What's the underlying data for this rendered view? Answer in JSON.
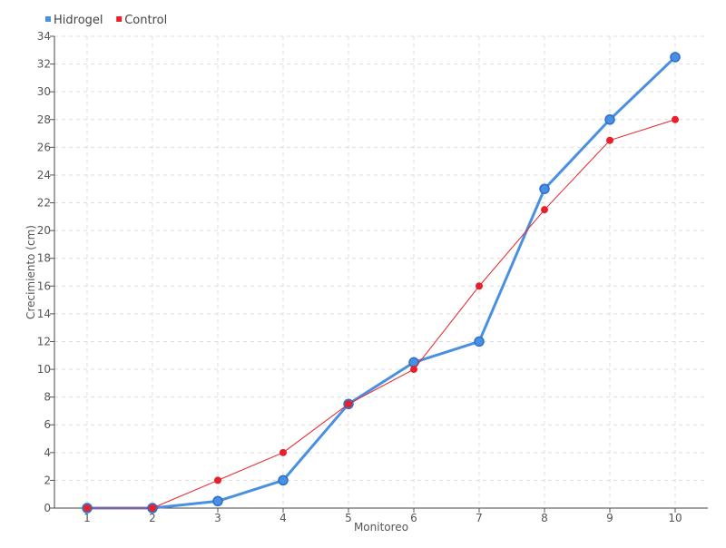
{
  "chart_data": {
    "type": "line",
    "title": "",
    "xlabel": "Monitoreo",
    "ylabel": "Crecimiento (cm)",
    "categories": [
      "1",
      "2",
      "3",
      "4",
      "5",
      "6",
      "7",
      "8",
      "9",
      "10"
    ],
    "ylim": [
      0,
      34
    ],
    "y_ticks": [
      0,
      2,
      4,
      6,
      8,
      10,
      12,
      14,
      16,
      18,
      20,
      22,
      24,
      26,
      28,
      30,
      32,
      34
    ],
    "grid": true,
    "legend_position": "top-left",
    "series": [
      {
        "name": "Hidrogel",
        "color": "#4a90e2",
        "values": [
          0,
          0,
          0.5,
          2,
          7.5,
          10.5,
          12,
          23,
          28,
          32.5
        ]
      },
      {
        "name": "Control",
        "color": "#e8202a",
        "values": [
          0,
          0,
          2,
          4,
          7.5,
          10,
          16,
          21.5,
          26.5,
          28
        ]
      }
    ]
  }
}
